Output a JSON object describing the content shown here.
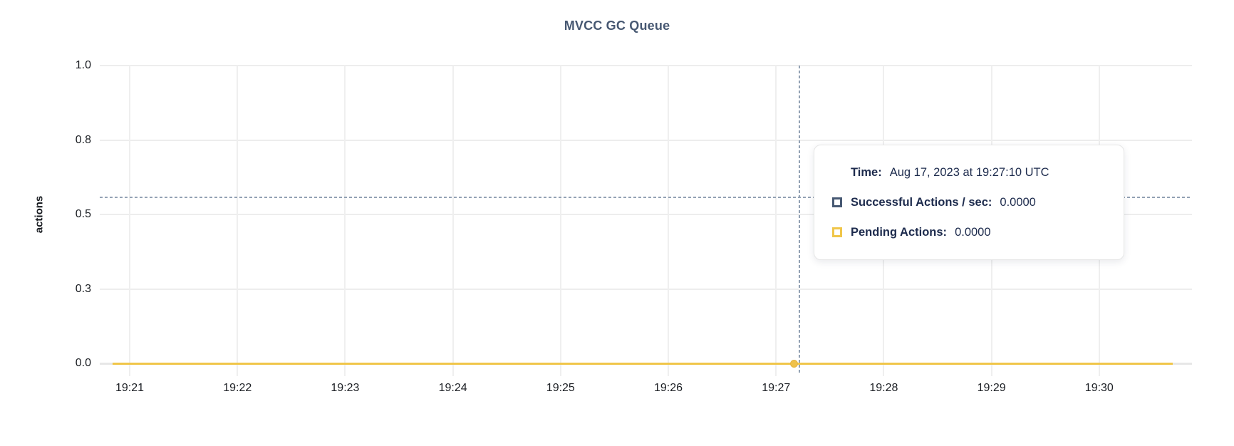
{
  "chart_data": {
    "type": "line",
    "title": "MVCC GC Queue",
    "ylabel": "actions",
    "x_axis": {
      "tick_labels": [
        "19:21",
        "19:22",
        "19:23",
        "19:24",
        "19:25",
        "19:26",
        "19:27",
        "19:28",
        "19:29",
        "19:30"
      ],
      "tick_minutes": [
        0,
        1,
        2,
        3,
        4,
        5,
        6,
        7,
        8,
        9
      ],
      "domain_minutes": [
        -0.278,
        9.861
      ]
    },
    "y_axis": {
      "label": "actions",
      "domain": [
        0,
        1.0
      ],
      "ticks": [
        {
          "v": 0.0,
          "label": "0.0"
        },
        {
          "v": 0.25,
          "label": "0.3"
        },
        {
          "v": 0.5,
          "label": "0.5"
        },
        {
          "v": 0.75,
          "label": "0.8"
        },
        {
          "v": 1.0,
          "label": "1.0"
        }
      ],
      "grid": true
    },
    "series": [
      {
        "name": "Successful Actions / sec",
        "color": "#475973",
        "x_minutes": [
          -0.16,
          9.68
        ],
        "values": [
          0,
          0
        ]
      },
      {
        "name": "Pending Actions",
        "color": "#f0c64a",
        "x_minutes": [
          -0.16,
          9.68
        ],
        "values": [
          0,
          0
        ]
      }
    ],
    "hover": {
      "snapped_minute": 6.167,
      "snapped_value": 0,
      "cursor_minute": 6.22,
      "cursor_value": 0.557
    },
    "colors": {
      "title": "#475872",
      "pending_yellow": "#f0c64a",
      "successful_slate": "#475973",
      "crosshair": "#93a2b4"
    }
  },
  "tooltip": {
    "time_label": "Time:",
    "time_value": "Aug 17, 2023 at 19:27:10 UTC",
    "rows": [
      {
        "label": "Successful Actions / sec:",
        "value": "0.0000",
        "color": "#475973"
      },
      {
        "label": "Pending Actions:",
        "value": "0.0000",
        "color": "#f0c64a"
      }
    ]
  }
}
